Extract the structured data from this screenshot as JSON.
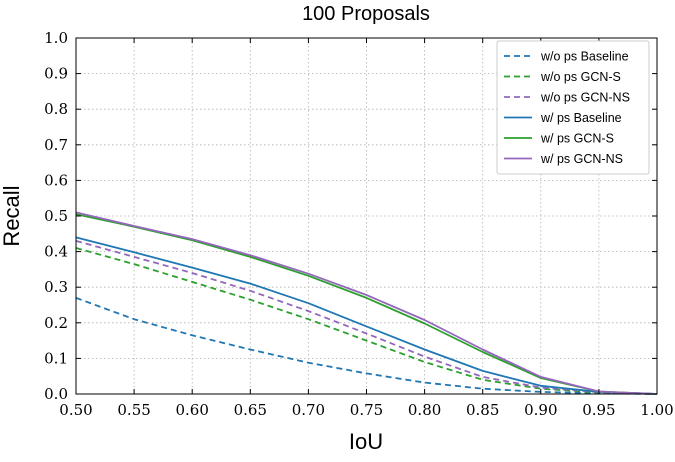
{
  "chart_data": {
    "type": "line",
    "title": "100 Proposals",
    "xlabel": "IoU",
    "ylabel": "Recall",
    "xlim": [
      0.5,
      1.0
    ],
    "ylim": [
      0.0,
      1.0
    ],
    "grid": true,
    "legend_position": "top-right",
    "x_ticks": [
      "0.50",
      "0.55",
      "0.60",
      "0.65",
      "0.70",
      "0.75",
      "0.80",
      "0.85",
      "0.90",
      "0.95",
      "1.00"
    ],
    "y_ticks": [
      "0.0",
      "0.1",
      "0.2",
      "0.3",
      "0.4",
      "0.5",
      "0.6",
      "0.7",
      "0.8",
      "0.9",
      "1.0"
    ],
    "x": [
      0.5,
      0.55,
      0.6,
      0.65,
      0.7,
      0.75,
      0.8,
      0.85,
      0.9,
      0.95,
      1.0
    ],
    "series": [
      {
        "name": "w/o ps Baseline",
        "style": "dashed",
        "color": "#1f77b4",
        "values": [
          0.27,
          0.21,
          0.165,
          0.125,
          0.088,
          0.058,
          0.032,
          0.015,
          0.006,
          0.002,
          0.0
        ]
      },
      {
        "name": "w/o ps GCN-S",
        "style": "dashed",
        "color": "#2ca02c",
        "values": [
          0.41,
          0.365,
          0.315,
          0.265,
          0.21,
          0.15,
          0.09,
          0.04,
          0.015,
          0.004,
          0.0
        ]
      },
      {
        "name": "w/o ps GCN-NS",
        "style": "dashed",
        "color": "#9467bd",
        "values": [
          0.43,
          0.385,
          0.34,
          0.29,
          0.233,
          0.17,
          0.105,
          0.048,
          0.018,
          0.005,
          0.0
        ]
      },
      {
        "name": "w/ ps Baseline",
        "style": "solid",
        "color": "#1f77b4",
        "values": [
          0.44,
          0.398,
          0.355,
          0.31,
          0.255,
          0.19,
          0.125,
          0.065,
          0.023,
          0.006,
          0.0
        ]
      },
      {
        "name": "w/ ps GCN-S",
        "style": "solid",
        "color": "#2ca02c",
        "values": [
          0.505,
          0.47,
          0.432,
          0.385,
          0.332,
          0.27,
          0.198,
          0.118,
          0.045,
          0.007,
          0.0
        ]
      },
      {
        "name": "w/ ps GCN-NS",
        "style": "solid",
        "color": "#9467bd",
        "values": [
          0.51,
          0.472,
          0.435,
          0.39,
          0.338,
          0.278,
          0.208,
          0.125,
          0.048,
          0.007,
          0.0
        ]
      }
    ]
  }
}
